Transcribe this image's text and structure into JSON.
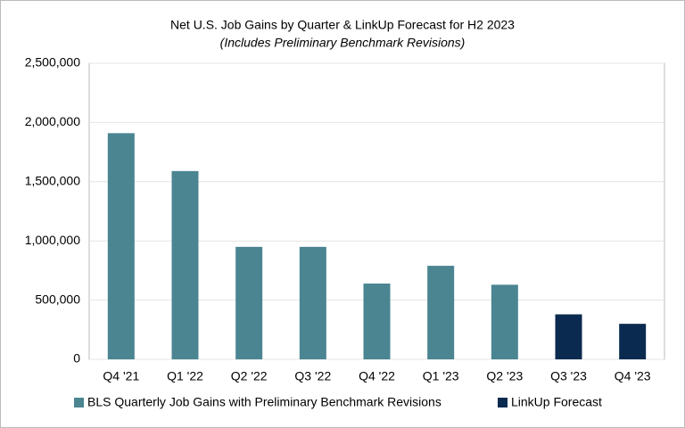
{
  "chart_data": {
    "type": "bar",
    "title": "Net U.S. Job Gains by Quarter & LinkUp Forecast for H2 2023",
    "subtitle": "(Includes Preliminary Benchmark Revisions)",
    "categories": [
      "Q4 '21",
      "Q1 '22",
      "Q2 '22",
      "Q3 '22",
      "Q4 '22",
      "Q1 '23",
      "Q2 '23",
      "Q3 '23",
      "Q4 '23"
    ],
    "series": [
      {
        "name": "BLS Quarterly Job Gains with Preliminary Benchmark Revisions",
        "color": "#4a8591",
        "values": [
          1910000,
          1590000,
          950000,
          950000,
          640000,
          790000,
          630000,
          null,
          null
        ]
      },
      {
        "name": "LinkUp Forecast",
        "color": "#0b2a4f",
        "values": [
          null,
          null,
          null,
          null,
          null,
          null,
          null,
          380000,
          300000
        ]
      }
    ],
    "ylim": [
      0,
      2500000
    ],
    "yticks": [
      0,
      {
        "value": 500000,
        "label": "500,000"
      },
      {
        "value": 1000000,
        "label": "1,000,000"
      },
      {
        "value": 1500000,
        "label": "1,500,000"
      },
      {
        "value": 2000000,
        "label": "2,000,000"
      },
      {
        "value": 2500000,
        "label": "2,500,000"
      }
    ],
    "grid": true
  }
}
